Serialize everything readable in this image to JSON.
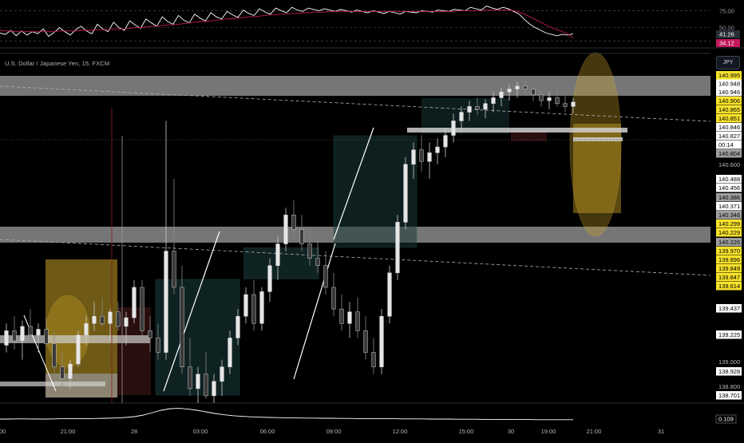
{
  "header": {
    "symbol_title": "U.S. Dollar / Japanese Yen, 15, FXCM",
    "currency": "JPY"
  },
  "colors": {
    "background": "#000000",
    "candle_up": "#e6e6e6",
    "candle_down": "#3a3a3a",
    "zone_grey": "#9e9e9e",
    "zone_gold": "#c9a227",
    "zone_teal": "#1a3a3a",
    "zone_red": "#3a1414",
    "label_yellow": "#f7e22b",
    "label_white": "#ffffff",
    "label_grey": "#9e9e9e",
    "rsi_line": "#ffffff",
    "rsi_signal": "#c2185b"
  },
  "chart_data": [
    {
      "type": "line",
      "panel": "oscillator",
      "axis_ticks": [
        "75.00",
        "50.00"
      ],
      "value_labels": [
        "41.26",
        "34.12"
      ],
      "ylim": [
        20,
        85
      ],
      "series": [
        {
          "values": [
            42,
            40,
            46,
            38,
            45,
            39,
            44,
            41,
            48,
            37,
            43,
            50,
            44,
            39,
            47,
            52,
            45,
            41,
            55,
            48,
            44,
            58,
            50,
            46,
            60,
            54,
            49,
            63,
            57,
            52,
            66,
            59,
            55,
            68,
            61,
            57,
            70,
            64,
            60,
            72,
            66,
            63,
            74,
            69,
            65,
            76,
            71,
            68,
            78,
            73,
            70,
            79,
            75,
            72,
            80,
            76,
            74,
            79,
            77,
            75,
            78,
            76,
            74,
            77,
            75,
            73,
            76,
            74,
            72,
            75,
            73,
            71,
            74,
            72,
            70,
            74,
            73,
            72,
            75,
            74,
            73,
            76,
            75,
            74,
            77,
            76,
            75,
            80,
            78,
            76,
            82,
            79,
            77,
            80,
            78,
            74,
            70,
            62,
            55,
            50,
            46,
            42,
            40,
            38,
            40,
            39,
            41
          ]
        },
        {
          "values": [
            46,
            45,
            45,
            44,
            44,
            44,
            44,
            44,
            44,
            44,
            44,
            45,
            45,
            45,
            45,
            46,
            46,
            46,
            47,
            47,
            47,
            48,
            48,
            48,
            49,
            50,
            50,
            51,
            52,
            52,
            53,
            54,
            54,
            55,
            56,
            57,
            58,
            59,
            59,
            60,
            61,
            62,
            63,
            63,
            64,
            65,
            66,
            66,
            67,
            68,
            69,
            69,
            70,
            70,
            71,
            71,
            72,
            72,
            73,
            73,
            73,
            74,
            74,
            74,
            74,
            74,
            74,
            74,
            74,
            74,
            74,
            74,
            74,
            74,
            74,
            74,
            74,
            74,
            74,
            74,
            74,
            74,
            74,
            74,
            74,
            75,
            75,
            75,
            75,
            75,
            76,
            76,
            76,
            76,
            76,
            75,
            73,
            70,
            66,
            62,
            58,
            54,
            50,
            47,
            44,
            41,
            35
          ]
        }
      ]
    },
    {
      "type": "candlestick",
      "panel": "price",
      "x_ticks": [
        "00",
        "21:00",
        "28",
        "03:00",
        "06:00",
        "09:00",
        "12:00",
        "15:00",
        "30",
        "19:00",
        "21:00",
        "31"
      ],
      "price_labels": [
        {
          "text": "140.995",
          "style": "yellow"
        },
        {
          "text": "140.948",
          "style": "white"
        },
        {
          "text": "140.946",
          "style": "white"
        },
        {
          "text": "140.906",
          "style": "yellow"
        },
        {
          "text": "140.865",
          "style": "yellow"
        },
        {
          "text": "140.851",
          "style": "yellow"
        },
        {
          "text": "140.846",
          "style": "white"
        },
        {
          "text": "140.827",
          "style": "white"
        },
        {
          "text": "00:14",
          "style": "white"
        },
        {
          "text": "140.804",
          "style": "grey"
        },
        {
          "text": "140.600",
          "style": "axis"
        },
        {
          "text": "140.488",
          "style": "white"
        },
        {
          "text": "140.456",
          "style": "white"
        },
        {
          "text": "140.386",
          "style": "grey"
        },
        {
          "text": "140.371",
          "style": "white"
        },
        {
          "text": "140.346",
          "style": "grey"
        },
        {
          "text": "140.299",
          "style": "yellow"
        },
        {
          "text": "140.229",
          "style": "yellow"
        },
        {
          "text": "140.226",
          "style": "grey"
        },
        {
          "text": "139.970",
          "style": "yellow"
        },
        {
          "text": "139.896",
          "style": "yellow"
        },
        {
          "text": "139.849",
          "style": "yellow"
        },
        {
          "text": "139.847",
          "style": "yellow"
        },
        {
          "text": "139.614",
          "style": "yellow"
        },
        {
          "text": "139.437",
          "style": "white"
        },
        {
          "text": "139.225",
          "style": "white"
        },
        {
          "text": "139.000",
          "style": "axis"
        },
        {
          "text": "138.928",
          "style": "white"
        },
        {
          "text": "138.800",
          "style": "axis"
        },
        {
          "text": "138.701",
          "style": "white"
        }
      ],
      "ylim": [
        138.75,
        141.05
      ],
      "candles": [
        [
          139.15,
          139.3,
          139.1,
          139.25
        ],
        [
          139.25,
          139.35,
          139.12,
          139.18
        ],
        [
          139.18,
          139.32,
          139.05,
          139.28
        ],
        [
          139.28,
          139.4,
          139.2,
          139.22
        ],
        [
          139.22,
          139.3,
          139.1,
          139.26
        ],
        [
          139.26,
          139.34,
          139.14,
          139.16
        ],
        [
          139.16,
          139.24,
          138.95,
          139.0
        ],
        [
          139.0,
          139.1,
          138.85,
          138.92
        ],
        [
          138.92,
          139.05,
          138.85,
          139.02
        ],
        [
          139.02,
          139.25,
          139.0,
          139.22
        ],
        [
          139.22,
          139.35,
          139.15,
          139.3
        ],
        [
          139.3,
          139.45,
          139.25,
          139.35
        ],
        [
          139.35,
          139.48,
          139.28,
          139.3
        ],
        [
          139.3,
          139.4,
          139.18,
          139.38
        ],
        [
          139.38,
          139.45,
          139.25,
          139.28
        ],
        [
          139.28,
          139.38,
          139.15,
          139.34
        ],
        [
          139.34,
          139.6,
          139.3,
          139.55
        ],
        [
          139.55,
          139.6,
          139.2,
          139.25
        ],
        [
          139.25,
          139.35,
          139.1,
          139.2
        ],
        [
          139.2,
          139.3,
          139.05,
          139.1
        ],
        [
          139.1,
          140.7,
          139.05,
          139.8
        ],
        [
          139.8,
          140.3,
          139.5,
          139.55
        ],
        [
          139.55,
          139.7,
          138.95,
          139.0
        ],
        [
          139.0,
          139.2,
          138.8,
          138.85
        ],
        [
          138.85,
          139.0,
          138.75,
          138.95
        ],
        [
          138.95,
          139.1,
          138.78,
          138.8
        ],
        [
          138.8,
          138.95,
          138.75,
          138.9
        ],
        [
          138.9,
          139.05,
          138.8,
          139.0
        ],
        [
          139.0,
          139.25,
          138.95,
          139.2
        ],
        [
          139.2,
          139.4,
          139.15,
          139.35
        ],
        [
          139.35,
          139.55,
          139.3,
          139.5
        ],
        [
          139.5,
          139.6,
          139.25,
          139.3
        ],
        [
          139.3,
          139.55,
          139.25,
          139.52
        ],
        [
          139.52,
          139.75,
          139.45,
          139.7
        ],
        [
          139.7,
          139.9,
          139.6,
          139.85
        ],
        [
          139.85,
          140.1,
          139.8,
          140.05
        ],
        [
          140.05,
          140.15,
          139.9,
          139.95
        ],
        [
          139.95,
          140.05,
          139.8,
          139.85
        ],
        [
          139.85,
          139.95,
          139.7,
          139.75
        ],
        [
          139.75,
          139.9,
          139.65,
          139.7
        ],
        [
          139.7,
          139.8,
          139.5,
          139.55
        ],
        [
          139.55,
          139.65,
          139.35,
          139.4
        ],
        [
          139.4,
          139.5,
          139.25,
          139.3
        ],
        [
          139.3,
          139.45,
          139.2,
          139.38
        ],
        [
          139.38,
          139.48,
          139.2,
          139.25
        ],
        [
          139.25,
          139.35,
          139.05,
          139.1
        ],
        [
          139.1,
          139.2,
          138.95,
          139.0
        ],
        [
          139.0,
          139.4,
          138.95,
          139.35
        ],
        [
          139.35,
          139.7,
          139.3,
          139.65
        ],
        [
          139.65,
          140.05,
          139.6,
          140.0
        ],
        [
          140.0,
          140.45,
          139.95,
          140.4
        ],
        [
          140.4,
          140.55,
          140.3,
          140.5
        ],
        [
          140.5,
          140.6,
          140.35,
          140.42
        ],
        [
          140.42,
          140.55,
          140.3,
          140.48
        ],
        [
          140.48,
          140.58,
          140.4,
          140.52
        ],
        [
          140.52,
          140.65,
          140.45,
          140.6
        ],
        [
          140.6,
          140.75,
          140.55,
          140.7
        ],
        [
          140.7,
          140.8,
          140.62,
          140.76
        ],
        [
          140.76,
          140.84,
          140.7,
          140.8
        ],
        [
          140.8,
          140.86,
          140.74,
          140.78
        ],
        [
          140.78,
          140.85,
          140.72,
          140.82
        ],
        [
          140.82,
          140.9,
          140.76,
          140.86
        ],
        [
          140.86,
          140.93,
          140.8,
          140.9
        ],
        [
          140.9,
          140.95,
          140.84,
          140.92
        ],
        [
          140.92,
          140.97,
          140.86,
          140.94
        ],
        [
          140.94,
          140.98,
          140.88,
          140.92
        ],
        [
          140.92,
          140.96,
          140.84,
          140.88
        ],
        [
          140.88,
          140.92,
          140.8,
          140.84
        ],
        [
          140.84,
          140.9,
          140.78,
          140.86
        ],
        [
          140.86,
          140.92,
          140.8,
          140.82
        ],
        [
          140.82,
          140.88,
          140.76,
          140.8
        ],
        [
          140.8,
          140.86,
          140.75,
          140.83
        ]
      ]
    },
    {
      "type": "line",
      "panel": "volume",
      "value_labels": [
        "0.109"
      ],
      "ylim": [
        0,
        1
      ],
      "series": [
        {
          "values": [
            0.15,
            0.15,
            0.16,
            0.16,
            0.15,
            0.15,
            0.16,
            0.17,
            0.17,
            0.18,
            0.18,
            0.19,
            0.2,
            0.22,
            0.25,
            0.3,
            0.4,
            0.55,
            0.7,
            0.8,
            0.82,
            0.78,
            0.7,
            0.6,
            0.5,
            0.42,
            0.36,
            0.32,
            0.29,
            0.27,
            0.25,
            0.24,
            0.23,
            0.22,
            0.21,
            0.21,
            0.2,
            0.2,
            0.19,
            0.19,
            0.18,
            0.18,
            0.17,
            0.17,
            0.17,
            0.16,
            0.16,
            0.16,
            0.15,
            0.15,
            0.15,
            0.14,
            0.14,
            0.14,
            0.13,
            0.13,
            0.13,
            0.12,
            0.12,
            0.12,
            0.11,
            0.11,
            0.11,
            0.11,
            0.11
          ]
        }
      ]
    }
  ]
}
